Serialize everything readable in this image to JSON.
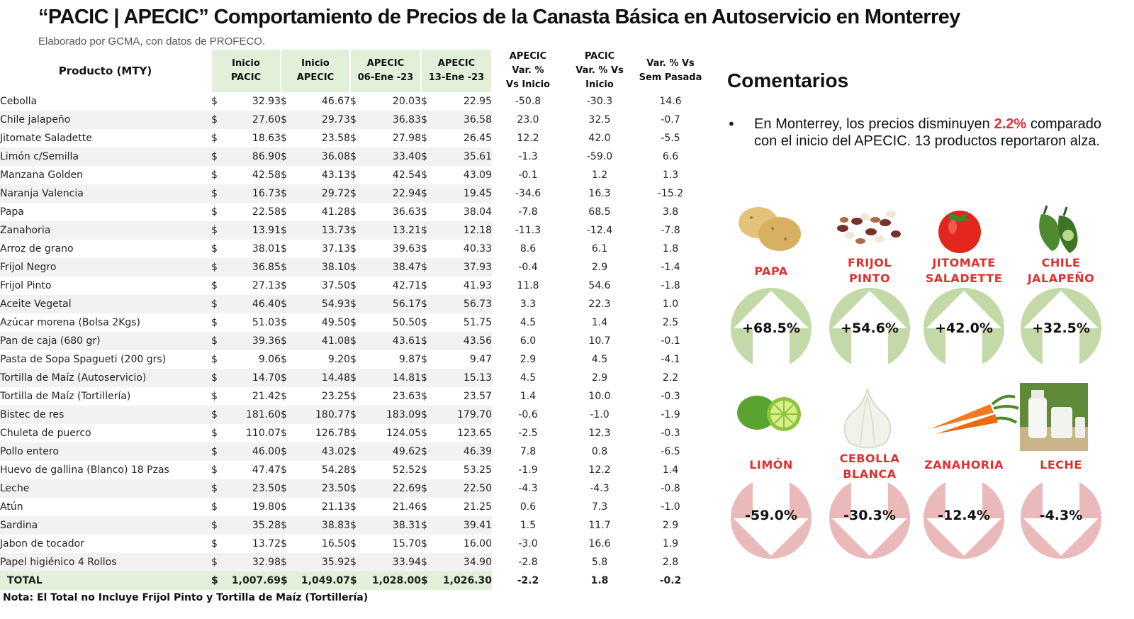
{
  "header": {
    "title": "“PACIC | APECIC” Comportamiento de Precios de la Canasta Básica en Autoservicio en Monterrey",
    "subtitle": "Elaborado por GCMA, con datos de PROFECO."
  },
  "table": {
    "headers": {
      "producto": "Producto (MTY)",
      "inicio_pacic": [
        "Inicio",
        "PACIC"
      ],
      "inicio_apecic": [
        "Inicio",
        "APECIC"
      ],
      "apecic_06": [
        "APECIC",
        "06-Ene -23"
      ],
      "apecic_13": [
        "APECIC",
        "13-Ene -23"
      ],
      "var_inicio": [
        "APECIC",
        "Var. %",
        "Vs  Inicio"
      ],
      "pacic_var": [
        "PACIC",
        "Var. % Vs",
        "Inicio"
      ],
      "var_sem": [
        "Var. % Vs",
        "Sem Pasada"
      ]
    },
    "currency": "$",
    "rows": [
      {
        "name": "Cebolla",
        "p": "32.93",
        "a": "46.67",
        "a06": "20.03",
        "a13": "22.95",
        "v1": "-50.8",
        "v2": "-30.3",
        "v3": "14.6"
      },
      {
        "name": "Chile jalapeño",
        "p": "27.60",
        "a": "29.73",
        "a06": "36.83",
        "a13": "36.58",
        "v1": "23.0",
        "v2": "32.5",
        "v3": "-0.7"
      },
      {
        "name": "Jitomate Saladette",
        "p": "18.63",
        "a": "23.58",
        "a06": "27.98",
        "a13": "26.45",
        "v1": "12.2",
        "v2": "42.0",
        "v3": "-5.5"
      },
      {
        "name": "Limón c/Semilla",
        "p": "86.90",
        "a": "36.08",
        "a06": "33.40",
        "a13": "35.61",
        "v1": "-1.3",
        "v2": "-59.0",
        "v3": "6.6"
      },
      {
        "name": "Manzana Golden",
        "p": "42.58",
        "a": "43.13",
        "a06": "42.54",
        "a13": "43.09",
        "v1": "-0.1",
        "v2": "1.2",
        "v3": "1.3"
      },
      {
        "name": "Naranja Valencia",
        "p": "16.73",
        "a": "29.72",
        "a06": "22.94",
        "a13": "19.45",
        "v1": "-34.6",
        "v2": "16.3",
        "v3": "-15.2"
      },
      {
        "name": "Papa",
        "p": "22.58",
        "a": "41.28",
        "a06": "36.63",
        "a13": "38.04",
        "v1": "-7.8",
        "v2": "68.5",
        "v3": "3.8"
      },
      {
        "name": "Zanahoria",
        "p": "13.91",
        "a": "13.73",
        "a06": "13.21",
        "a13": "12.18",
        "v1": "-11.3",
        "v2": "-12.4",
        "v3": "-7.8"
      },
      {
        "name": "Arroz de grano",
        "p": "38.01",
        "a": "37.13",
        "a06": "39.63",
        "a13": "40.33",
        "v1": "8.6",
        "v2": "6.1",
        "v3": "1.8"
      },
      {
        "name": "Frijol Negro",
        "p": "36.85",
        "a": "38.10",
        "a06": "38.47",
        "a13": "37.93",
        "v1": "-0.4",
        "v2": "2.9",
        "v3": "-1.4"
      },
      {
        "name": "Frijol Pinto",
        "p": "27.13",
        "a": "37.50",
        "a06": "42.71",
        "a13": "41.93",
        "v1": "11.8",
        "v2": "54.6",
        "v3": "-1.8"
      },
      {
        "name": "Aceite Vegetal",
        "p": "46.40",
        "a": "54.93",
        "a06": "56.17",
        "a13": "56.73",
        "v1": "3.3",
        "v2": "22.3",
        "v3": "1.0"
      },
      {
        "name": "Azúcar morena (Bolsa 2Kgs)",
        "p": "51.03",
        "a": "49.50",
        "a06": "50.50",
        "a13": "51.75",
        "v1": "4.5",
        "v2": "1.4",
        "v3": "2.5"
      },
      {
        "name": "Pan de caja (680 gr)",
        "p": "39.36",
        "a": "41.08",
        "a06": "43.61",
        "a13": "43.56",
        "v1": "6.0",
        "v2": "10.7",
        "v3": "-0.1"
      },
      {
        "name": "Pasta de Sopa Spagueti (200 grs)",
        "p": "9.06",
        "a": "9.20",
        "a06": "9.87",
        "a13": "9.47",
        "v1": "2.9",
        "v2": "4.5",
        "v3": "-4.1"
      },
      {
        "name": "Tortilla de Maíz (Autoservicio)",
        "p": "14.70",
        "a": "14.48",
        "a06": "14.81",
        "a13": "15.13",
        "v1": "4.5",
        "v2": "2.9",
        "v3": "2.2"
      },
      {
        "name": "Tortilla de Maíz (Tortillería)",
        "p": "21.42",
        "a": "23.25",
        "a06": "23.63",
        "a13": "23.57",
        "v1": "1.4",
        "v2": "10.0",
        "v3": "-0.3"
      },
      {
        "name": " Bistec de res",
        "p": "181.60",
        "a": "180.77",
        "a06": "183.09",
        "a13": "179.70",
        "v1": "-0.6",
        "v2": "-1.0",
        "v3": "-1.9"
      },
      {
        "name": " Chuleta de puerco",
        "p": "110.07",
        "a": "126.78",
        "a06": "124.05",
        "a13": "123.65",
        "v1": "-2.5",
        "v2": "12.3",
        "v3": "-0.3"
      },
      {
        "name": " Pollo entero",
        "p": "46.00",
        "a": "43.02",
        "a06": "49.62",
        "a13": "46.39",
        "v1": "7.8",
        "v2": "0.8",
        "v3": "-6.5"
      },
      {
        "name": " Huevo de gallina (Blanco) 18 Pzas",
        "p": "47.47",
        "a": "54.28",
        "a06": "52.52",
        "a13": "53.25",
        "v1": "-1.9",
        "v2": "12.2",
        "v3": "1.4"
      },
      {
        "name": " Leche",
        "p": "23.50",
        "a": "23.50",
        "a06": "22.69",
        "a13": "22.50",
        "v1": "-4.3",
        "v2": "-4.3",
        "v3": "-0.8"
      },
      {
        "name": " Atún",
        "p": "19.80",
        "a": "21.13",
        "a06": "21.46",
        "a13": "21.25",
        "v1": "0.6",
        "v2": "7.3",
        "v3": "-1.0"
      },
      {
        "name": " Sardina",
        "p": "35.28",
        "a": "38.83",
        "a06": "38.31",
        "a13": "39.41",
        "v1": "1.5",
        "v2": "11.7",
        "v3": "2.9"
      },
      {
        "name": " Jabon de tocador",
        "p": "13.72",
        "a": "16.50",
        "a06": "15.70",
        "a13": "16.00",
        "v1": "-3.0",
        "v2": "16.6",
        "v3": "1.9"
      },
      {
        "name": " Papel higiénico 4 Rollos",
        "p": "32.98",
        "a": "35.92",
        "a06": "33.94",
        "a13": "34.90",
        "v1": "-2.8",
        "v2": "5.8",
        "v3": "2.8"
      }
    ],
    "total": {
      "name": "TOTAL",
      "p": "1,007.69",
      "a": "1,049.07",
      "a06": "1,028.00",
      "a13": "1,026.30",
      "v1": "-2.2",
      "v2": "1.8",
      "v3": "-0.2"
    },
    "note": "Nota: El Total no Incluye Frijol Pinto y Tortilla de Maíz (Tortillería)"
  },
  "comments": {
    "title": "Comentarios",
    "bullet": "•",
    "text_before": "En Monterrey, los precios disminuyen ",
    "highlight": "2.2%",
    "text_after": " comparado con el inicio del APECIC. 13 productos reportaron alza."
  },
  "highlights": {
    "up": [
      {
        "label": [
          "PAPA"
        ],
        "value": "+68.5%",
        "icon": "potato-icon"
      },
      {
        "label": [
          "FRIJOL",
          "PINTO"
        ],
        "value": "+54.6%",
        "icon": "beans-icon"
      },
      {
        "label": [
          "JITOMATE",
          "SALADETTE"
        ],
        "value": "+42.0%",
        "icon": "tomato-icon"
      },
      {
        "label": [
          "CHILE",
          "JALAPEÑO"
        ],
        "value": "+32.5%",
        "icon": "jalapeno-icon"
      }
    ],
    "down": [
      {
        "label": [
          "LIMÓN"
        ],
        "value": "-59.0%",
        "icon": "lime-icon"
      },
      {
        "label": [
          "CEBOLLA",
          "BLANCA"
        ],
        "value": "-30.3%",
        "icon": "onion-icon"
      },
      {
        "label": [
          "ZANAHORIA"
        ],
        "value": "-12.4%",
        "icon": "carrot-icon"
      },
      {
        "label": [
          "LECHE"
        ],
        "value": "-4.3%",
        "icon": "milk-icon"
      }
    ]
  },
  "colors": {
    "up_circle": "#c4d9a8",
    "down_circle": "#eab9b9",
    "negative": "#e03030",
    "header_green": "#e2efd9"
  }
}
